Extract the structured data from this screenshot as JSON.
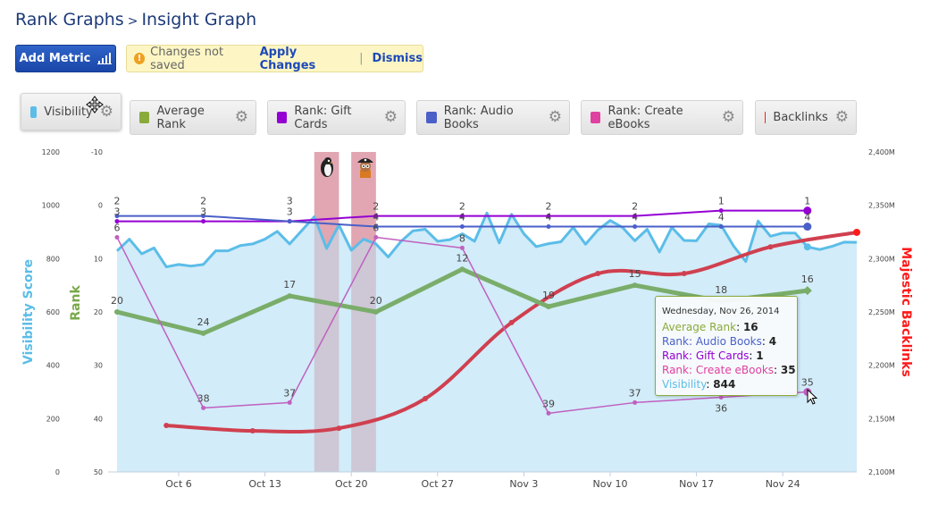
{
  "breadcrumb": {
    "parent": "Rank Graphs",
    "separator": ">",
    "current": "Insight Graph"
  },
  "toolbar": {
    "add_metric_label": "Add Metric",
    "add_metric_icon": "bar-chart-icon"
  },
  "notice": {
    "icon": "warning-icon",
    "message": "Changes not saved",
    "apply_label": "Apply Changes",
    "separator": "|",
    "dismiss_label": "Dismiss"
  },
  "legend": [
    {
      "label": "Visibility",
      "color": "#5bbde8",
      "active": true
    },
    {
      "label": "Average Rank",
      "color": "#8aaa3a"
    },
    {
      "label": "Rank: Gift Cards",
      "color": "#9400d3"
    },
    {
      "label": "Rank: Audio Books",
      "color": "#4a5fc8"
    },
    {
      "label": "Rank: Create eBooks",
      "color": "#e040a0"
    },
    {
      "label": "Backlinks",
      "color": "#ff1a1a"
    }
  ],
  "tooltip": {
    "date": "Wednesday, Nov 26, 2014",
    "rows": [
      {
        "label": "Average Rank",
        "value": "16",
        "color": "#8aaa3a"
      },
      {
        "label": "Rank: Audio Books",
        "value": "4",
        "color": "#4a5fc8"
      },
      {
        "label": "Rank: Gift Cards",
        "value": "1",
        "color": "#9400d3"
      },
      {
        "label": "Rank: Create eBooks",
        "value": "35",
        "color": "#e040a0"
      },
      {
        "label": "Visibility",
        "value": "844",
        "color": "#5bbde8"
      }
    ]
  },
  "chart_data": {
    "type": "line",
    "x_range": [
      "2014-10-01",
      "2014-11-30"
    ],
    "x_ticks": [
      "Oct 6",
      "Oct 13",
      "Oct 20",
      "Oct 27",
      "Nov 3",
      "Nov 10",
      "Nov 17",
      "Nov 24"
    ],
    "x_tick_dates": [
      "2014-10-06",
      "2014-10-13",
      "2014-10-20",
      "2014-10-27",
      "2014-11-03",
      "2014-11-10",
      "2014-11-17",
      "2014-11-24"
    ],
    "axes": {
      "visibility": {
        "label": "Visibility Score",
        "range": [
          0,
          1200
        ],
        "ticks": [
          "1200",
          "1000",
          "800",
          "600",
          "400",
          "200",
          "0"
        ],
        "color": "#5bbde8"
      },
      "rank": {
        "label": "Rank",
        "range": [
          -10,
          50
        ],
        "reversed": true,
        "ticks": [
          "-10",
          "0",
          "10",
          "20",
          "30",
          "40",
          "50"
        ],
        "color": "#7aa84a"
      },
      "backlinks": {
        "label": "Majestic Backlinks",
        "range": [
          2100,
          2400
        ],
        "unit": "M",
        "ticks": [
          "2,400M",
          "2,350M",
          "2,300M",
          "2,250M",
          "2,200M",
          "2,150M",
          "2,100M"
        ],
        "color": "#ff1a1a"
      }
    },
    "events": [
      {
        "name": "Penguin",
        "icon": "penguin-icon",
        "start": "2014-10-17",
        "end": "2014-10-19",
        "color": "#e89aa8"
      },
      {
        "name": "Pirate",
        "icon": "pirate-icon",
        "start": "2014-10-20",
        "end": "2014-10-22",
        "color": "#e89aa8"
      }
    ],
    "visibility": {
      "name": "Visibility",
      "type": "area",
      "start": "2014-10-01",
      "interval": "daily",
      "color": "#5bbde8",
      "fill": "#cdeaf8",
      "values": [
        829,
        873,
        818,
        840,
        769,
        778,
        772,
        778,
        829,
        829,
        849,
        855,
        873,
        902,
        855,
        906,
        957,
        838,
        926,
        831,
        873,
        855,
        806,
        863,
        904,
        910,
        865,
        871,
        893,
        865,
        971,
        859,
        966,
        893,
        845,
        856,
        863,
        917,
        854,
        907,
        943,
        917,
        867,
        910,
        825,
        917,
        868,
        867,
        930,
        925,
        848,
        789,
        941,
        884,
        896,
        896,
        844,
        834,
        846,
        862,
        861
      ]
    },
    "rank_dates": [
      "2014-10-01",
      "2014-10-08",
      "2014-10-15",
      "2014-10-22",
      "2014-10-29",
      "2014-11-05",
      "2014-11-12",
      "2014-11-19",
      "2014-11-26"
    ],
    "rank_series": [
      {
        "name": "Average Rank",
        "color": "#7aad6a",
        "width": 5,
        "values": [
          20,
          24,
          17,
          20,
          12,
          19,
          15,
          18,
          16
        ]
      },
      {
        "name": "Rank: Gift Cards",
        "color": "#9400d3",
        "width": 2,
        "values": [
          3,
          3,
          3,
          2,
          2,
          2,
          2,
          1,
          1
        ]
      },
      {
        "name": "Rank: Audio Books",
        "color": "#4a5fc8",
        "width": 2,
        "values": [
          2,
          2,
          3,
          4,
          4,
          4,
          4,
          4,
          4
        ]
      },
      {
        "name": "Rank: Create eBooks",
        "color": "#c060c0",
        "width": 1.5,
        "values": [
          6,
          38,
          37,
          6,
          8,
          39,
          37,
          36,
          35
        ]
      }
    ],
    "backlinks": {
      "name": "Backlinks",
      "color": "#d04050",
      "dates": [
        "2014-10-05",
        "2014-10-12",
        "2014-10-19",
        "2014-10-26",
        "2014-11-02",
        "2014-11-09",
        "2014-11-16",
        "2014-11-23",
        "2014-11-30"
      ],
      "values": [
        2143.6,
        2138.5,
        2141,
        2168.7,
        2240,
        2286,
        2286,
        2311,
        2324.6
      ]
    }
  }
}
